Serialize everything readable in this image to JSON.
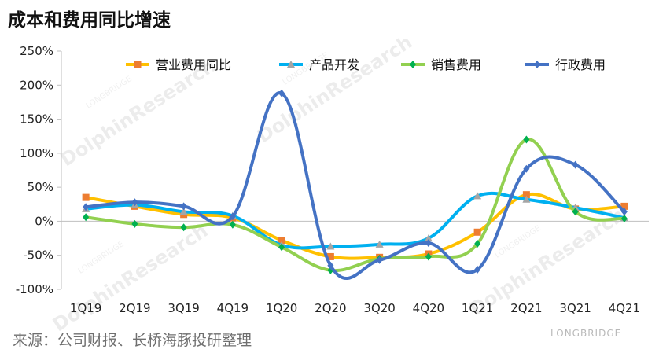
{
  "title": "成本和费用同比增速",
  "source": "来源：公司财报、长桥海豚投研整理",
  "watermark": {
    "main": "DolphinResearch",
    "sub": "LONGBRIDGE",
    "brand": "LONGBRIDGE"
  },
  "chart_data": {
    "type": "line",
    "categories": [
      "1Q19",
      "2Q19",
      "3Q19",
      "4Q19",
      "1Q20",
      "2Q20",
      "3Q20",
      "4Q20",
      "1Q21",
      "2Q21",
      "3Q21",
      "4Q21"
    ],
    "y_ticks": [
      "250%",
      "200%",
      "150%",
      "100%",
      "50%",
      "0%",
      "-50%",
      "-100%"
    ],
    "ylim": [
      -100,
      250
    ],
    "unit": "%",
    "grid": false,
    "legend_position": "top",
    "series": [
      {
        "name": "营业费用同比",
        "color": "#FFC000",
        "marker": "square",
        "marker_color": "#ED7D31",
        "values": [
          35,
          22,
          10,
          5,
          -28,
          -52,
          -53,
          -48,
          -16,
          39,
          18,
          22
        ]
      },
      {
        "name": "产品开发",
        "color": "#00B0F0",
        "marker": "triangle",
        "marker_color": "#A5A5A5",
        "values": [
          18,
          24,
          14,
          8,
          -35,
          -37,
          -34,
          -25,
          37,
          32,
          20,
          5
        ]
      },
      {
        "name": "销售费用",
        "color": "#92D050",
        "marker": "diamond",
        "marker_color": "#00B050",
        "values": [
          6,
          -4,
          -9,
          -5,
          -38,
          -72,
          -55,
          -52,
          -33,
          120,
          14,
          4
        ]
      },
      {
        "name": "行政费用",
        "color": "#4472C4",
        "marker": "diamond",
        "marker_color": "#4472C4",
        "values": [
          21,
          28,
          22,
          7,
          188,
          -65,
          -57,
          -32,
          -71,
          77,
          83,
          14
        ]
      }
    ]
  }
}
